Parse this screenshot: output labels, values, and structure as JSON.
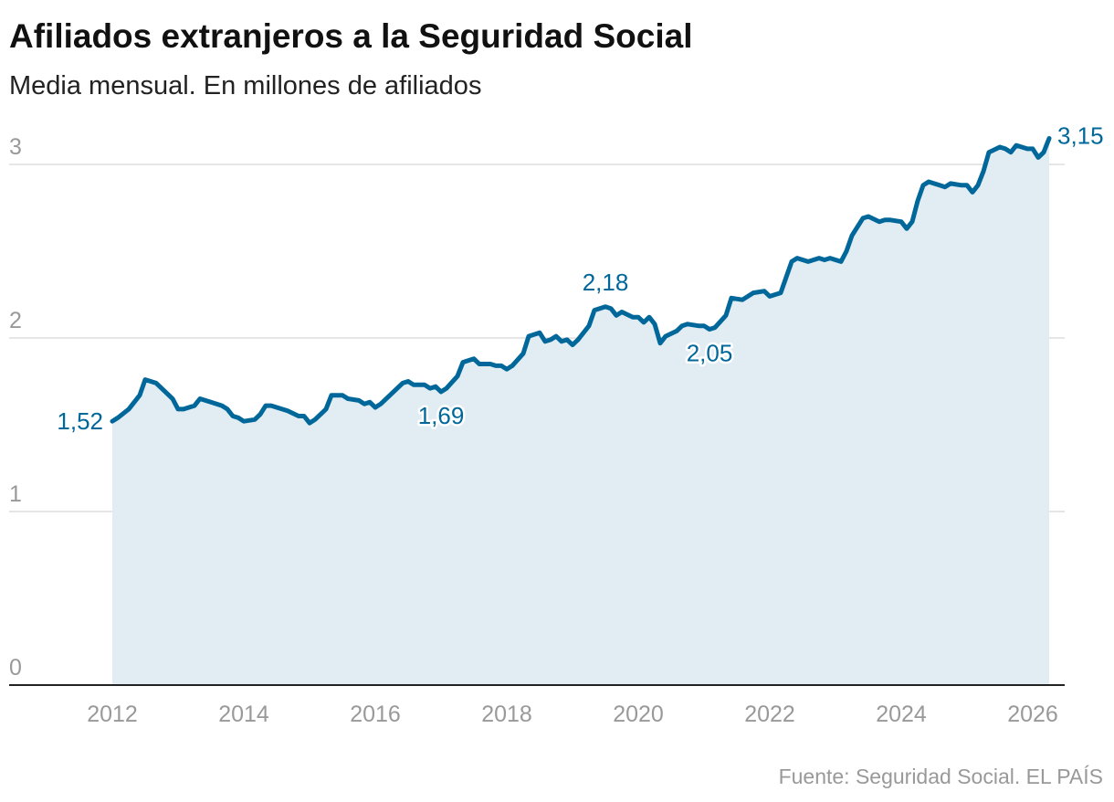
{
  "chart_data": {
    "type": "area",
    "title": "Afiliados extranjeros a la Seguridad Social",
    "subtitle": "Media mensual. En millones de afiliados",
    "source": "Fuente: Seguridad Social. EL PAÍS",
    "xlabel": "",
    "ylabel": "",
    "ylim": [
      0,
      3.2
    ],
    "xlim": [
      "2012-01",
      "2026-04"
    ],
    "y_ticks": [
      "0",
      "1",
      "2",
      "3"
    ],
    "x_ticks": [
      "2012",
      "2014",
      "2016",
      "2018",
      "2020",
      "2022",
      "2024",
      "2026"
    ],
    "grid": true,
    "colors": {
      "line": "#00679a",
      "fill": "#e1ecf3",
      "grid": "#dddddd",
      "axis": "#222222"
    },
    "annotations": [
      {
        "date": "2012-01",
        "label": "1,52",
        "position": "left"
      },
      {
        "date": "2017-01",
        "label": "1,69",
        "position": "below"
      },
      {
        "date": "2019-07",
        "label": "2,18",
        "position": "above"
      },
      {
        "date": "2021-02",
        "label": "2,05",
        "position": "below"
      },
      {
        "date": "2026-04",
        "label": "3,15",
        "position": "right"
      }
    ],
    "series": [
      {
        "x": [
          "2012-01",
          "2012-02",
          "2012-04",
          "2012-06",
          "2012-07",
          "2012-09",
          "2012-11",
          "2012-12",
          "2013-01",
          "2013-02",
          "2013-04",
          "2013-05",
          "2013-07",
          "2013-09",
          "2013-10",
          "2013-11",
          "2013-12",
          "2014-01",
          "2014-03",
          "2014-04",
          "2014-05",
          "2014-06",
          "2014-08",
          "2014-09",
          "2014-11",
          "2014-12",
          "2015-01",
          "2015-02",
          "2015-04",
          "2015-05",
          "2015-07",
          "2015-08",
          "2015-10",
          "2015-11",
          "2015-12",
          "2016-01",
          "2016-02",
          "2016-04",
          "2016-06",
          "2016-07",
          "2016-08",
          "2016-10",
          "2016-11",
          "2016-12",
          "2017-01",
          "2017-02",
          "2017-04",
          "2017-05",
          "2017-07",
          "2017-08",
          "2017-10",
          "2017-11",
          "2017-12",
          "2018-01",
          "2018-02",
          "2018-04",
          "2018-05",
          "2018-07",
          "2018-08",
          "2018-09",
          "2018-10",
          "2018-11",
          "2018-12",
          "2019-01",
          "2019-02",
          "2019-04",
          "2019-05",
          "2019-07",
          "2019-08",
          "2019-09",
          "2019-10",
          "2019-12",
          "2020-01",
          "2020-02",
          "2020-03",
          "2020-04",
          "2020-05",
          "2020-06",
          "2020-08",
          "2020-09",
          "2020-10",
          "2020-12",
          "2021-01",
          "2021-02",
          "2021-03",
          "2021-05",
          "2021-06",
          "2021-08",
          "2021-10",
          "2021-12",
          "2022-01",
          "2022-03",
          "2022-04",
          "2022-05",
          "2022-06",
          "2022-08",
          "2022-10",
          "2022-11",
          "2022-12",
          "2023-02",
          "2023-03",
          "2023-04",
          "2023-06",
          "2023-07",
          "2023-09",
          "2023-10",
          "2023-11",
          "2024-01",
          "2024-02",
          "2024-03",
          "2024-04",
          "2024-05",
          "2024-06",
          "2024-08",
          "2024-09",
          "2024-10",
          "2024-12",
          "2025-01",
          "2025-02",
          "2025-03",
          "2025-04",
          "2025-05",
          "2025-07",
          "2025-08",
          "2025-09",
          "2025-10",
          "2025-12",
          "2026-01",
          "2026-02",
          "2026-03",
          "2026-04"
        ],
        "values": [
          1.52,
          1.54,
          1.59,
          1.67,
          1.76,
          1.74,
          1.68,
          1.65,
          1.59,
          1.59,
          1.61,
          1.65,
          1.63,
          1.61,
          1.59,
          1.55,
          1.54,
          1.52,
          1.53,
          1.56,
          1.61,
          1.61,
          1.59,
          1.58,
          1.55,
          1.55,
          1.51,
          1.53,
          1.59,
          1.67,
          1.67,
          1.65,
          1.64,
          1.62,
          1.63,
          1.6,
          1.62,
          1.68,
          1.74,
          1.75,
          1.73,
          1.73,
          1.71,
          1.72,
          1.69,
          1.71,
          1.78,
          1.86,
          1.88,
          1.85,
          1.85,
          1.84,
          1.84,
          1.82,
          1.84,
          1.91,
          2.01,
          2.03,
          1.98,
          1.99,
          2.01,
          1.98,
          1.99,
          1.96,
          1.99,
          2.07,
          2.16,
          2.18,
          2.17,
          2.13,
          2.15,
          2.12,
          2.12,
          2.09,
          2.12,
          2.08,
          1.97,
          2.01,
          2.04,
          2.07,
          2.08,
          2.07,
          2.07,
          2.05,
          2.06,
          2.13,
          2.23,
          2.22,
          2.26,
          2.27,
          2.24,
          2.26,
          2.35,
          2.44,
          2.46,
          2.44,
          2.46,
          2.45,
          2.46,
          2.44,
          2.5,
          2.59,
          2.69,
          2.7,
          2.67,
          2.68,
          2.68,
          2.67,
          2.63,
          2.67,
          2.79,
          2.88,
          2.9,
          2.88,
          2.87,
          2.89,
          2.88,
          2.88,
          2.84,
          2.88,
          2.96,
          3.07,
          3.1,
          3.09,
          3.07,
          3.11,
          3.09,
          3.09,
          3.04,
          3.07,
          3.15
        ]
      }
    ]
  }
}
